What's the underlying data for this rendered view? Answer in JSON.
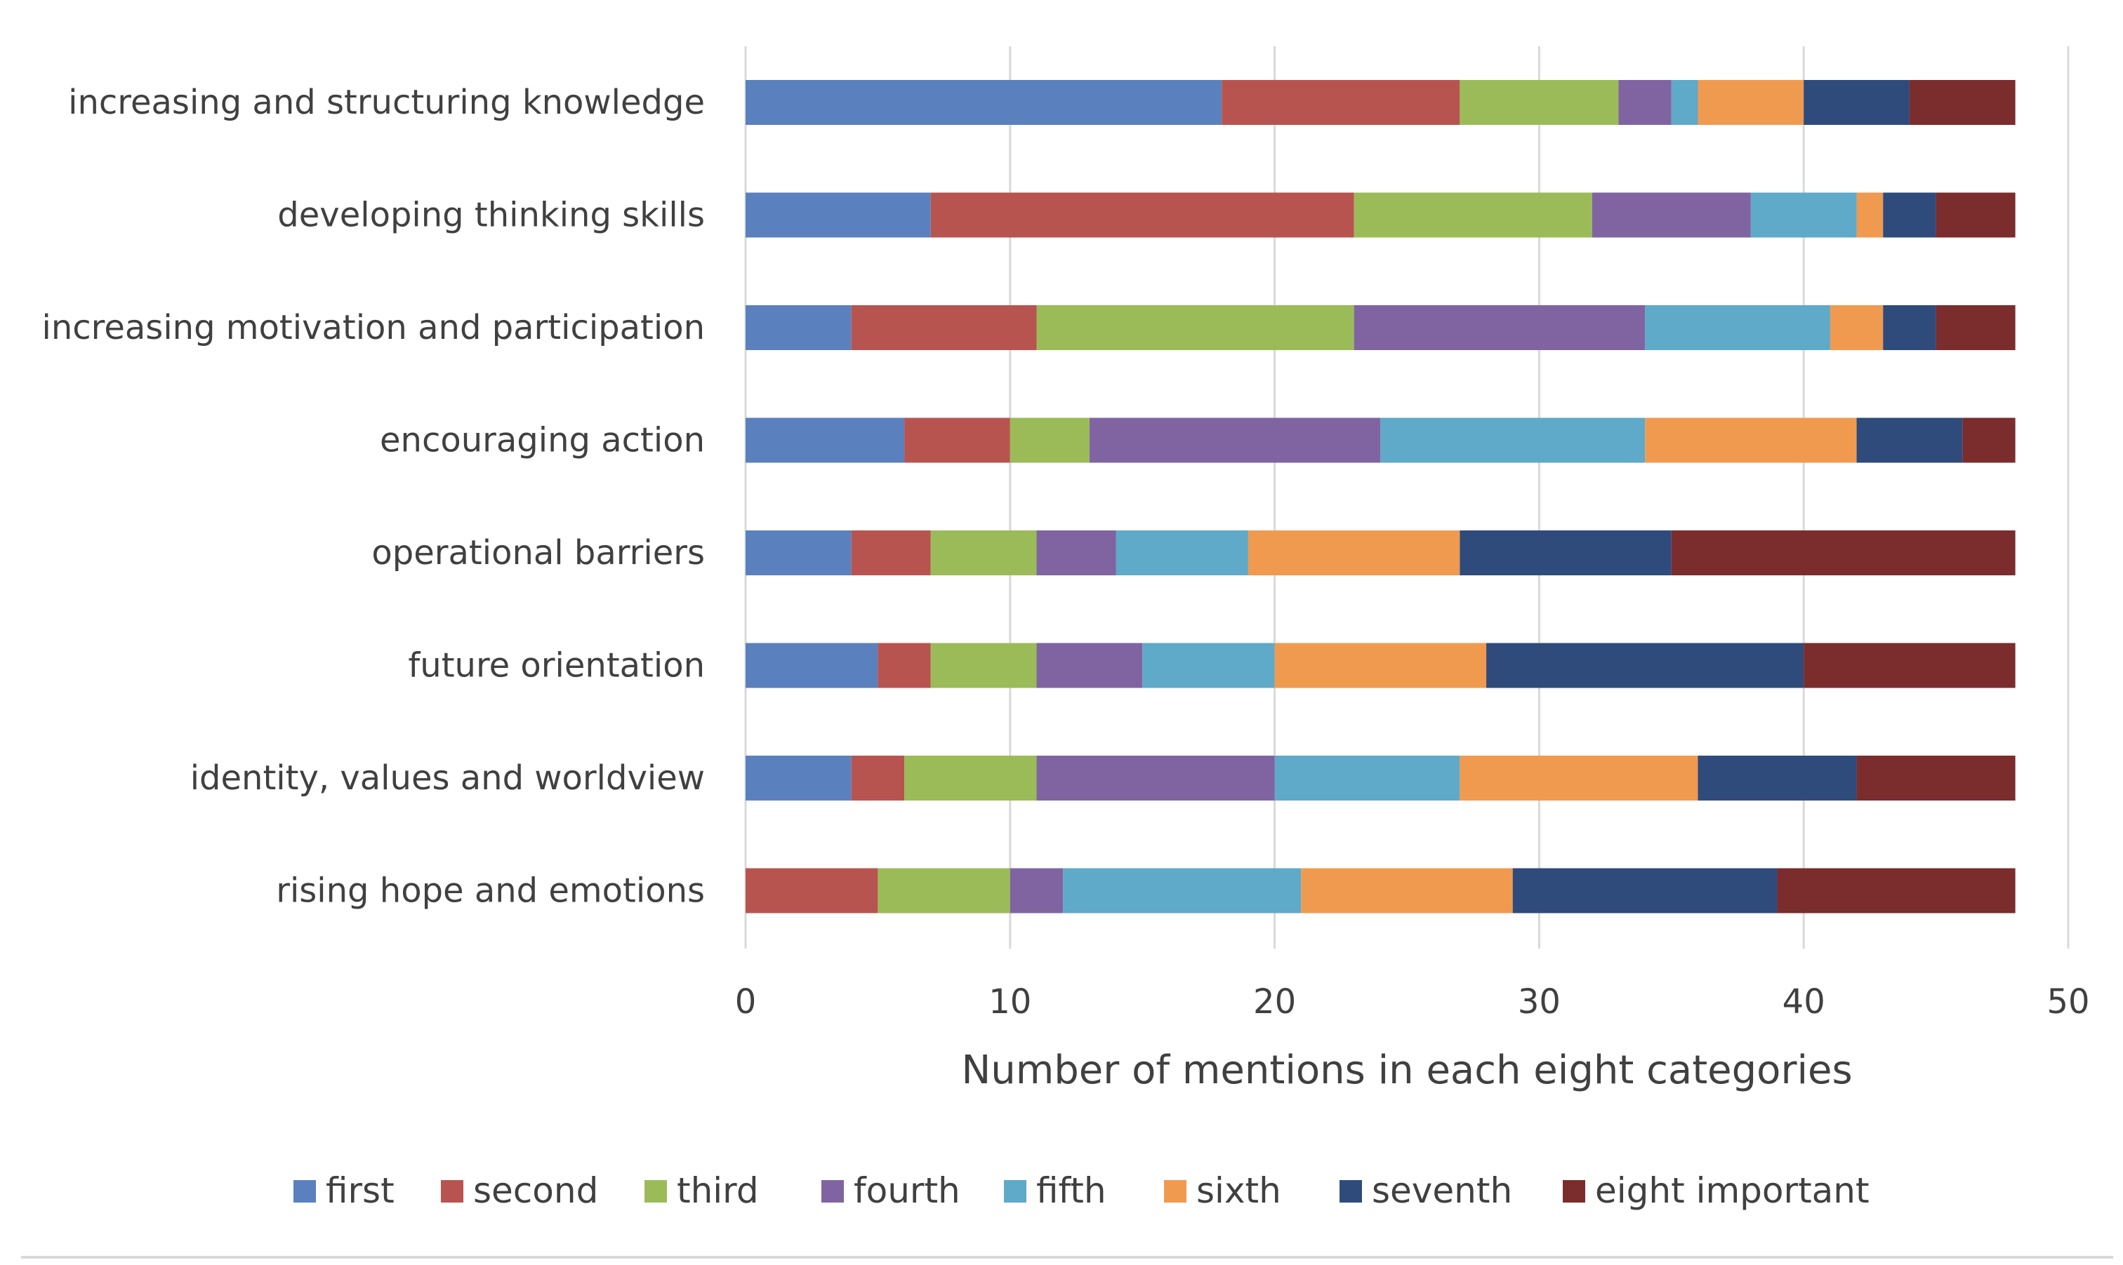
{
  "chart_data": {
    "type": "bar",
    "orientation": "horizontal",
    "stacked": true,
    "categories": [
      "increasing and structuring knowledge",
      "developing thinking skills",
      "increasing motivation and participation",
      "encouraging action",
      "operational barriers",
      "future orientation",
      "identity, values and worldview",
      "rising hope and emotions"
    ],
    "series": [
      {
        "name": "first",
        "color": "#5B80BE",
        "values": [
          18,
          7,
          4,
          6,
          4,
          5,
          4,
          0
        ]
      },
      {
        "name": "second",
        "color": "#B85450",
        "values": [
          9,
          16,
          7,
          4,
          3,
          2,
          2,
          5
        ]
      },
      {
        "name": "third",
        "color": "#9BBB59",
        "values": [
          6,
          9,
          12,
          3,
          4,
          4,
          5,
          5
        ]
      },
      {
        "name": "fourth",
        "color": "#8064A2",
        "values": [
          2,
          6,
          11,
          11,
          3,
          4,
          9,
          2
        ]
      },
      {
        "name": "fifth",
        "color": "#5FA9C9",
        "values": [
          1,
          4,
          7,
          10,
          5,
          5,
          7,
          9
        ]
      },
      {
        "name": "sixth",
        "color": "#F09A50",
        "values": [
          4,
          1,
          2,
          8,
          8,
          8,
          9,
          8
        ]
      },
      {
        "name": "seventh",
        "color": "#2F4B7C",
        "values": [
          4,
          2,
          2,
          4,
          8,
          12,
          6,
          10
        ]
      },
      {
        "name": "eight important",
        "color": "#7B2C2C",
        "values": [
          4,
          3,
          3,
          2,
          13,
          8,
          6,
          9
        ]
      }
    ],
    "x_ticks": [
      "0",
      "10",
      "20",
      "30",
      "40",
      "50"
    ],
    "xlim": [
      0,
      50
    ],
    "xlabel": "Number of mentions in each eight categories",
    "title": "",
    "ylabel": "",
    "grid": "vertical",
    "legend_position": "bottom"
  }
}
